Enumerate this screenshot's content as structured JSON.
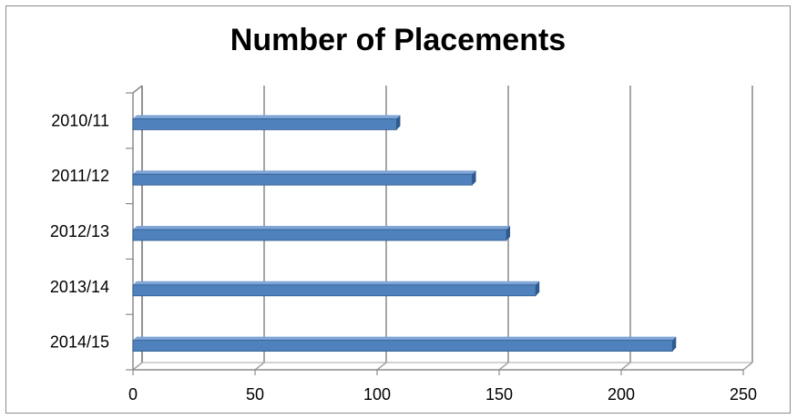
{
  "chart_data": {
    "type": "bar",
    "orientation": "horizontal",
    "title": "Number of Placements",
    "categories": [
      "2010/11",
      "2011/12",
      "2012/13",
      "2013/14",
      "2014/15"
    ],
    "values": [
      108,
      139,
      153,
      165,
      221
    ],
    "xlim": [
      0,
      250
    ],
    "xticks": [
      0,
      50,
      100,
      150,
      200,
      250
    ],
    "grid": true,
    "legend": "none",
    "colors": {
      "bar": "#4f81bd",
      "bar_dark": "#2e5a8f",
      "bar_light": "#7fa6d6",
      "grid": "#a6a6a6"
    }
  }
}
